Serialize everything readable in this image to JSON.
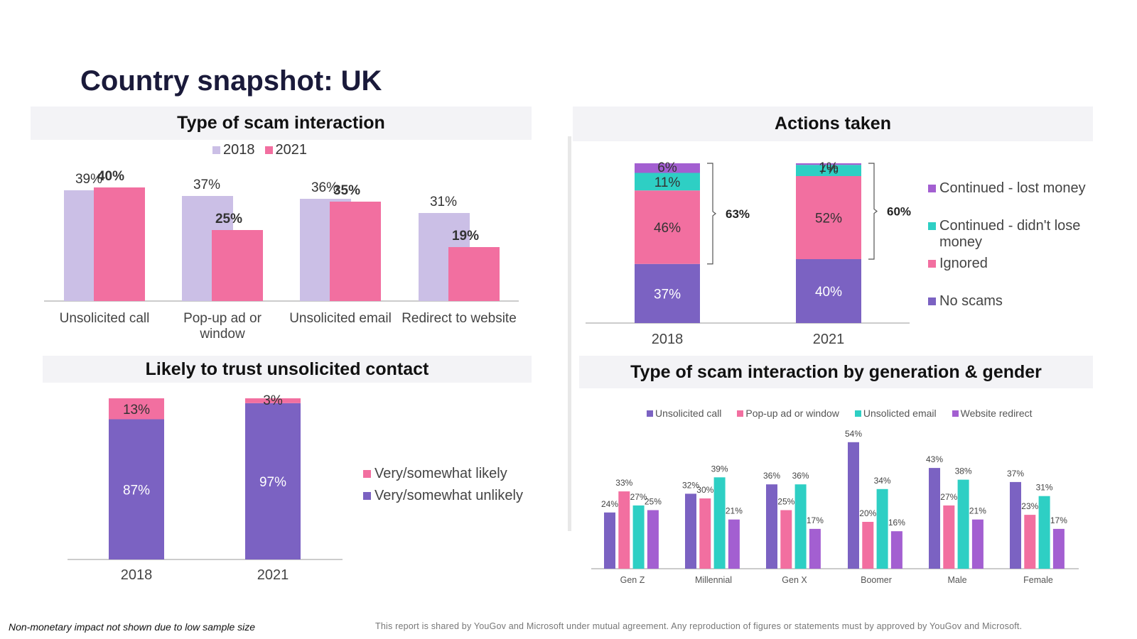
{
  "page": {
    "title": "Country snapshot: UK",
    "footnote": "Non-monetary impact not shown due to low sample size",
    "disclaimer": "This report is shared by YouGov and Microsoft under mutual agreement. Any reproduction of figures or statements must by approved by YouGov and Microsoft."
  },
  "colors": {
    "lavender": "#cbbfe6",
    "pink": "#f26fa0",
    "purple": "#7b62c2",
    "teal": "#2ecfc4",
    "violet": "#a35fd1"
  },
  "chart_data": [
    {
      "id": "scam-interaction",
      "type": "bar",
      "title": "Type of scam interaction",
      "categories": [
        "Unsolicited call",
        "Pop-up ad or window",
        "Unsolicited email",
        "Redirect to website"
      ],
      "series": [
        {
          "name": "2018",
          "values": [
            39,
            37,
            36,
            31
          ],
          "labels": [
            "39%",
            "37%",
            "36%",
            "31%"
          ]
        },
        {
          "name": "2021",
          "values": [
            40,
            25,
            35,
            19
          ],
          "labels": [
            "40%",
            "25%",
            "35%",
            "19%"
          ]
        }
      ],
      "ylim": [
        0,
        45
      ]
    },
    {
      "id": "actions-taken",
      "type": "bar",
      "stacked": true,
      "title": "Actions taken",
      "categories": [
        "2018",
        "2021"
      ],
      "series": [
        {
          "name": "No scams",
          "values": [
            37,
            40
          ],
          "labels": [
            "37%",
            "40%"
          ]
        },
        {
          "name": "Ignored",
          "values": [
            46,
            52
          ],
          "labels": [
            "46%",
            "52%"
          ]
        },
        {
          "name": "Continued - didn't lose money",
          "values": [
            11,
            7
          ],
          "labels": [
            "11%",
            "7%"
          ]
        },
        {
          "name": "Continued - lost money",
          "values": [
            6,
            1
          ],
          "labels": [
            "6%",
            "1%"
          ]
        }
      ],
      "brackets": [
        "63%",
        "60%"
      ],
      "legend": [
        "Continued - lost money",
        "Continued - didn't lose",
        "money",
        "Ignored",
        "No scams"
      ]
    },
    {
      "id": "trust",
      "type": "bar",
      "stacked": true,
      "title": "Likely to trust unsolicited contact",
      "categories": [
        "2018",
        "2021"
      ],
      "series": [
        {
          "name": "Very/somewhat unlikely",
          "values": [
            87,
            97
          ],
          "labels": [
            "87%",
            "97%"
          ]
        },
        {
          "name": "Very/somewhat likely",
          "values": [
            13,
            3
          ],
          "labels": [
            "13%",
            "3%"
          ]
        }
      ],
      "legend": [
        "Very/somewhat likely",
        "Very/somewhat unlikely"
      ]
    },
    {
      "id": "by-generation",
      "type": "bar",
      "title": "Type of scam interaction by generation & gender",
      "categories": [
        "Gen Z",
        "Millennial",
        "Gen X",
        "Boomer",
        "Male",
        "Female"
      ],
      "series": [
        {
          "name": "Unsolicited call",
          "values": [
            24,
            32,
            36,
            54,
            43,
            37
          ],
          "labels": [
            "24%",
            "32%",
            "36%",
            "54%",
            "43%",
            "37%"
          ]
        },
        {
          "name": "Pop-up ad or window",
          "values": [
            33,
            30,
            25,
            20,
            27,
            23
          ],
          "labels": [
            "33%",
            "30%",
            "25%",
            "20%",
            "27%",
            "23%"
          ]
        },
        {
          "name": "Unsolicted email",
          "values": [
            27,
            39,
            36,
            34,
            38,
            31
          ],
          "labels": [
            "27%",
            "39%",
            "36%",
            "34%",
            "38%",
            "31%"
          ]
        },
        {
          "name": "Website redirect",
          "values": [
            25,
            21,
            17,
            16,
            21,
            17
          ],
          "labels": [
            "25%",
            "21%",
            "17%",
            "16%",
            "21%",
            "17%"
          ]
        }
      ],
      "ylim": [
        0,
        55
      ]
    }
  ]
}
